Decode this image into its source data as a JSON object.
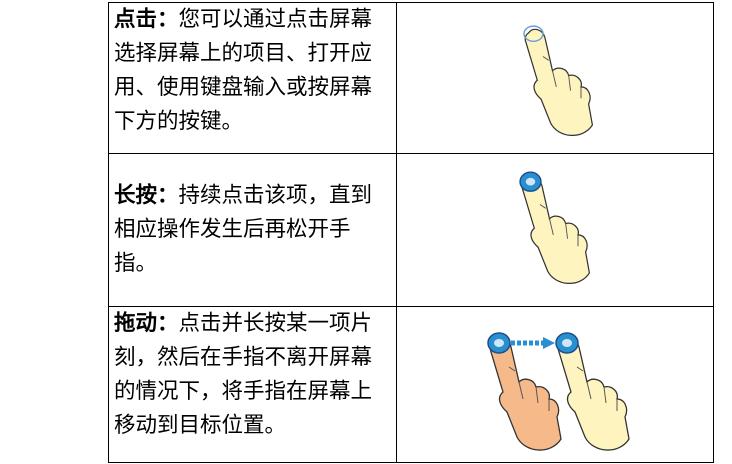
{
  "table": {
    "rows": [
      {
        "term": "点击：",
        "description": "您可以通过点击屏幕选择屏幕上的项目、打开应用、使用键盘输入或按屏幕下方的按键。"
      },
      {
        "term": "长按：",
        "description": "持续点击该项，直到相应操作发生后再松开手指。"
      },
      {
        "term": "拖动：",
        "description": "点击并长按某一项片刻，然后在手指不离开屏幕的情况下，将手指在屏幕上移动到目标位置。"
      }
    ]
  }
}
